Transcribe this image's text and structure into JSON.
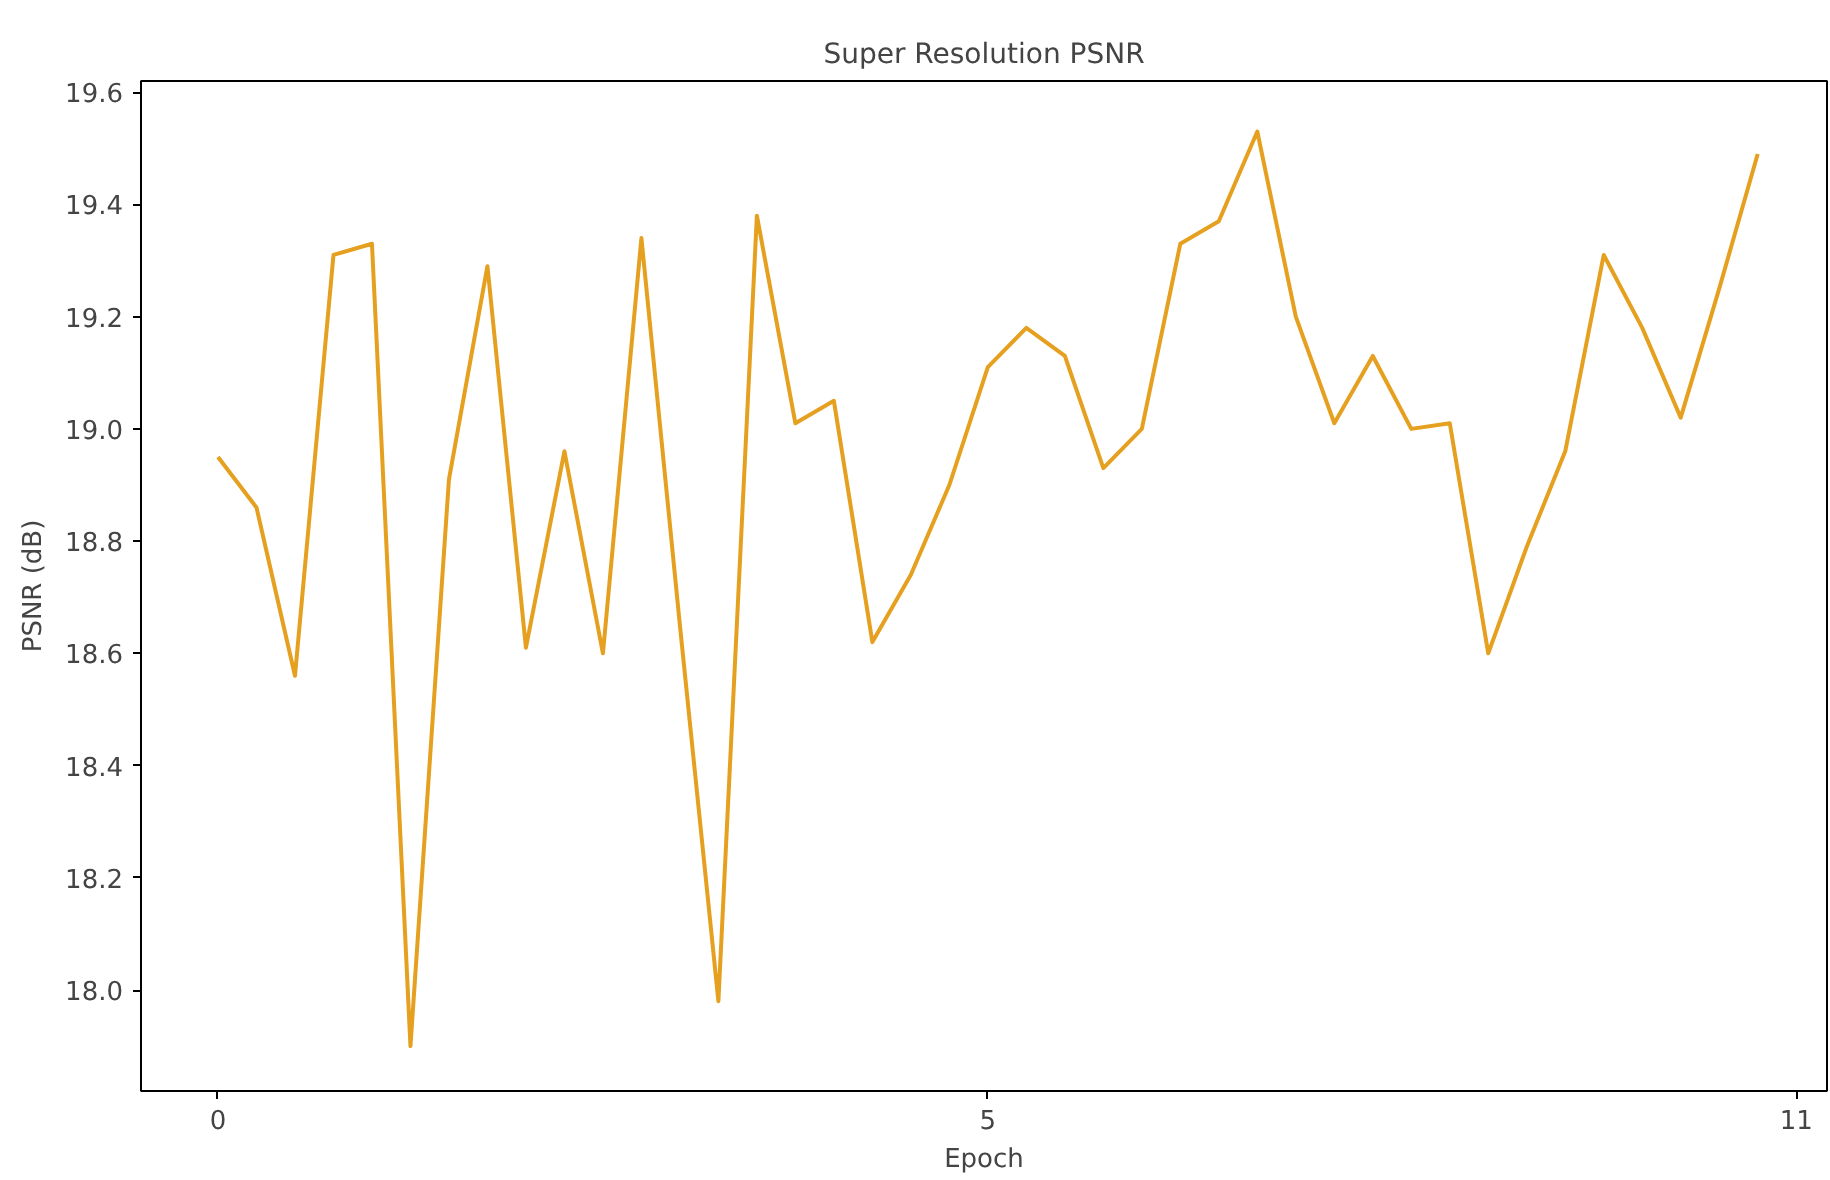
{
  "chart_data": {
    "type": "line",
    "title": "Super Resolution PSNR",
    "xlabel": "Epoch",
    "ylabel": "PSNR (dB)",
    "categories": [
      "0",
      null,
      null,
      null,
      null,
      null,
      null,
      null,
      null,
      null,
      null,
      null,
      null,
      null,
      null,
      null,
      null,
      null,
      null,
      null,
      "5",
      null,
      null,
      null,
      null,
      null,
      null,
      null,
      null,
      null,
      null,
      null,
      null,
      null,
      null,
      null,
      null,
      null,
      null,
      null,
      null,
      "11"
    ],
    "series": [
      {
        "color": "#e6a020",
        "values": [
          18.95,
          18.86,
          18.56,
          19.31,
          19.33,
          17.9,
          18.91,
          19.29,
          18.61,
          18.96,
          18.6,
          19.34,
          18.65,
          17.98,
          19.38,
          19.01,
          19.05,
          18.62,
          18.74,
          18.9,
          19.11,
          19.18,
          19.13,
          18.93,
          19.0,
          19.33,
          19.37,
          19.53,
          19.2,
          19.01,
          19.13,
          19.0,
          19.01,
          18.6,
          18.79,
          18.96,
          19.31,
          19.18,
          19.02,
          19.25,
          19.49,
          null
        ]
      }
    ],
    "ylim": [
      17.82,
      19.62
    ],
    "yticks": [
      {
        "value": 18,
        "label": "18.0"
      },
      {
        "value": 18.2,
        "label": "18.2"
      },
      {
        "value": 18.4,
        "label": "18.4"
      },
      {
        "value": 18.6,
        "label": "18.6"
      },
      {
        "value": 18.8,
        "label": "18.8"
      },
      {
        "value": 19,
        "label": "19.0"
      },
      {
        "value": 19.2,
        "label": "19.2"
      },
      {
        "value": 19.4,
        "label": "19.4"
      },
      {
        "value": 19.6,
        "label": "19.6"
      }
    ],
    "grid": false,
    "line_style": "solid"
  }
}
